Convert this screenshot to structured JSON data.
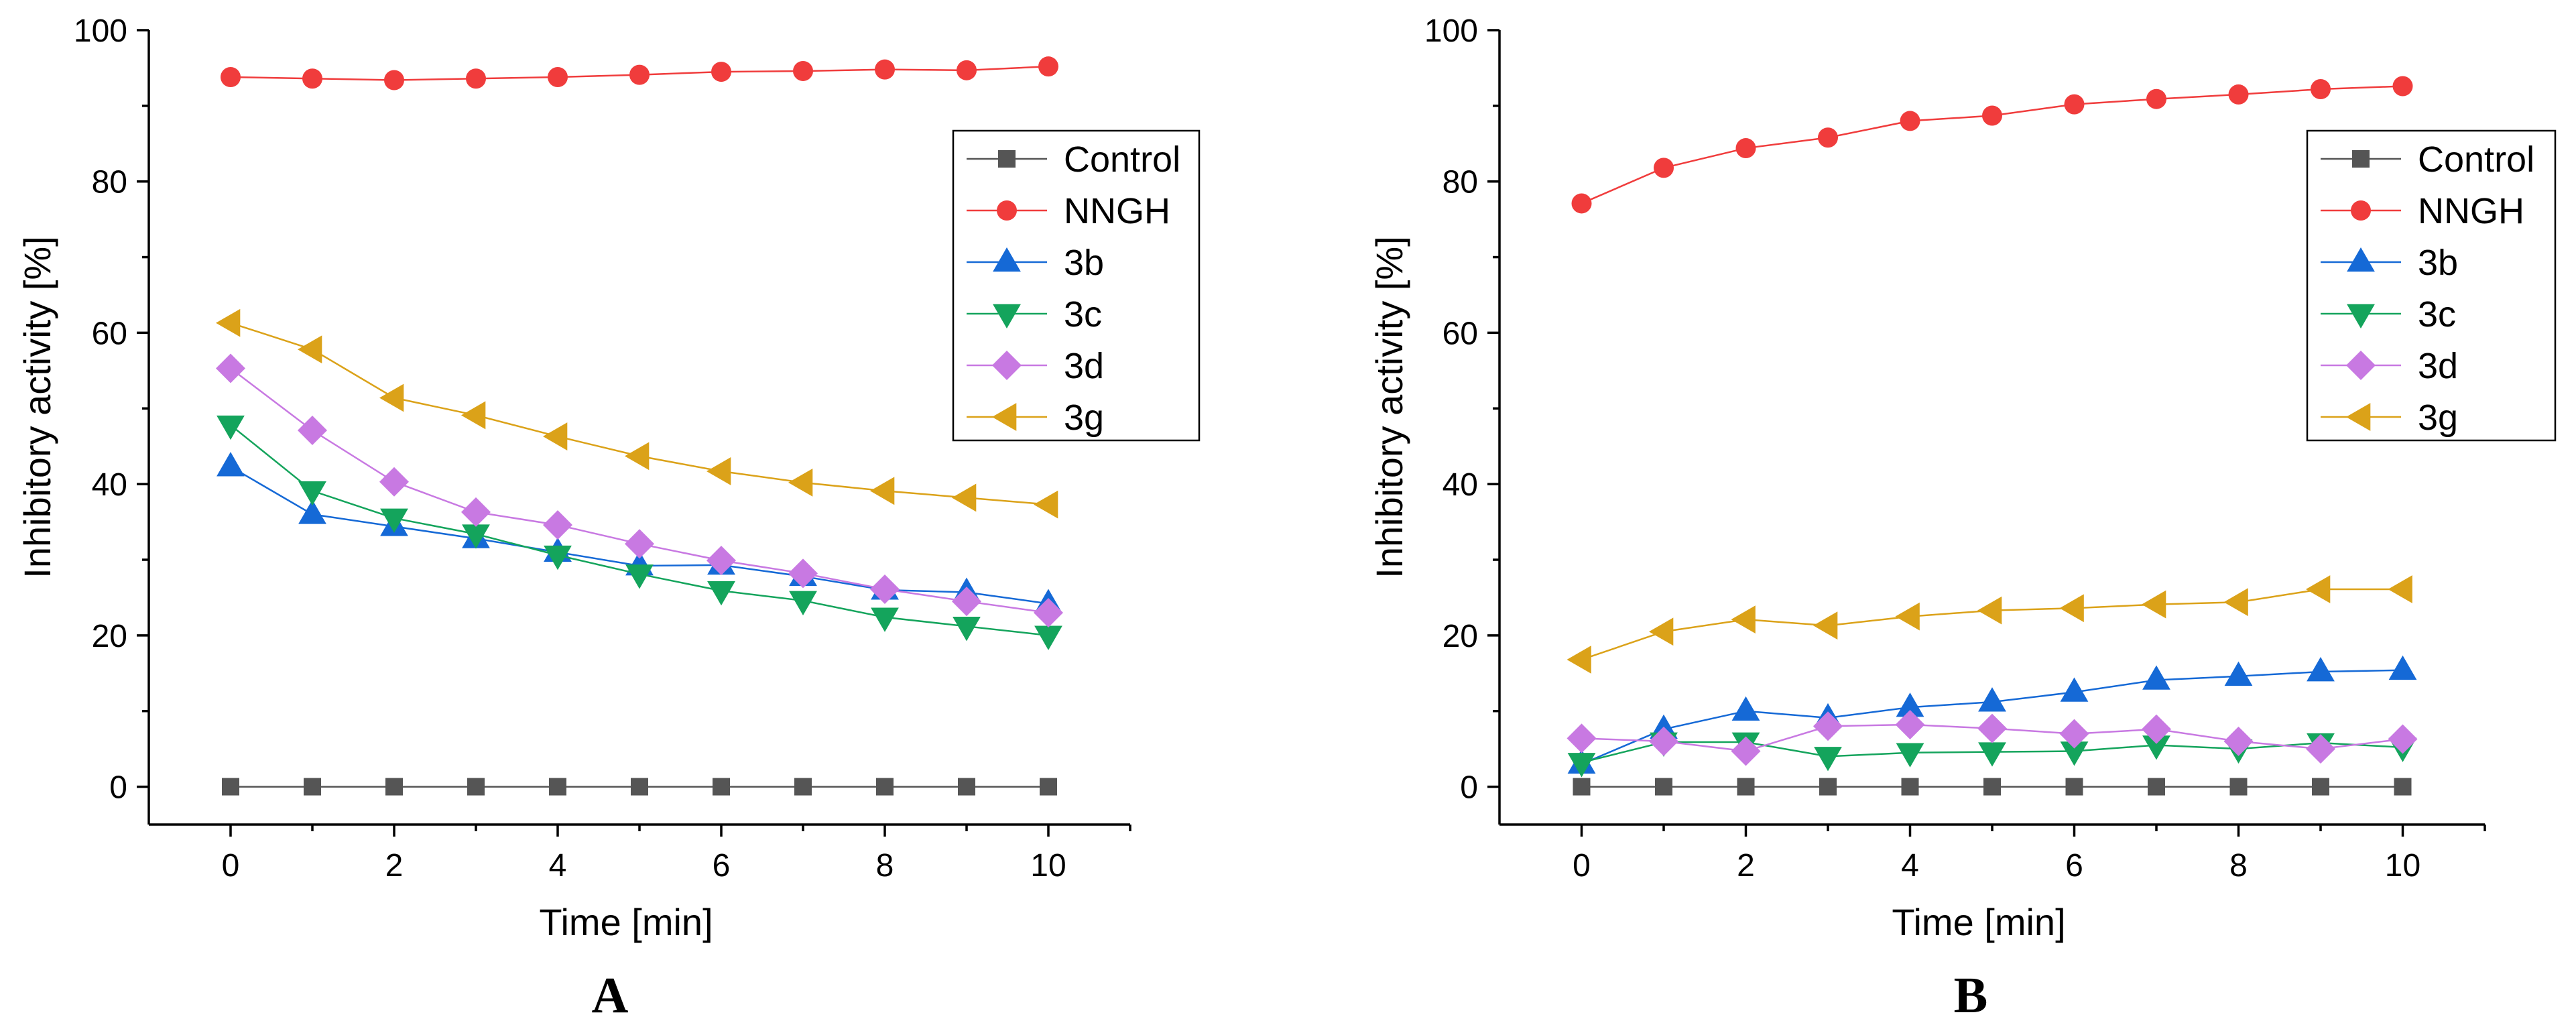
{
  "chart_data": [
    {
      "type": "line",
      "panel": "A",
      "xlabel": "Time [min]",
      "ylabel": "Inhibitory activity [%]",
      "xlim": [
        -1,
        11
      ],
      "ylim": [
        -5,
        100
      ],
      "xticks": [
        0,
        2,
        4,
        6,
        8,
        10
      ],
      "yticks": [
        0,
        20,
        40,
        60,
        80,
        100
      ],
      "grid": false,
      "legend_position": "top-right",
      "x": [
        0,
        1,
        2,
        3,
        4,
        5,
        6,
        7,
        8,
        9,
        10
      ],
      "series": [
        {
          "name": "Control",
          "color": "#555555",
          "marker": "square",
          "values": [
            0,
            0,
            0,
            0,
            0,
            0,
            0,
            0,
            0,
            0,
            0
          ]
        },
        {
          "name": "NNGH",
          "color": "#f03c3c",
          "marker": "circle",
          "values": [
            93.8,
            93.6,
            93.4,
            93.6,
            93.8,
            94.1,
            94.5,
            94.6,
            94.8,
            94.7,
            95.2
          ]
        },
        {
          "name": "3b",
          "color": "#1569d6",
          "marker": "triangle-up",
          "values": [
            42.3,
            36.0,
            34.4,
            32.8,
            31.0,
            29.2,
            29.3,
            27.8,
            26.0,
            25.7,
            24.2
          ]
        },
        {
          "name": "3c",
          "color": "#14a45c",
          "marker": "triangle-down",
          "values": [
            47.8,
            39.1,
            35.5,
            33.4,
            30.6,
            28.1,
            25.9,
            24.6,
            22.4,
            21.2,
            20.0
          ]
        },
        {
          "name": "3d",
          "color": "#c879e2",
          "marker": "diamond",
          "values": [
            55.3,
            47.1,
            40.3,
            36.3,
            34.6,
            32.1,
            29.9,
            28.2,
            26.1,
            24.5,
            23.0
          ]
        },
        {
          "name": "3g",
          "color": "#dba219",
          "marker": "triangle-left",
          "values": [
            61.3,
            57.8,
            51.4,
            49.1,
            46.3,
            43.7,
            41.7,
            40.2,
            39.1,
            38.2,
            37.3
          ]
        }
      ]
    },
    {
      "type": "line",
      "panel": "B",
      "xlabel": "Time [min]",
      "ylabel": "Inhibitory activity [%]",
      "xlim": [
        -1,
        11
      ],
      "ylim": [
        -5,
        100
      ],
      "xticks": [
        0,
        2,
        4,
        6,
        8,
        10
      ],
      "yticks": [
        0,
        20,
        40,
        60,
        80,
        100
      ],
      "grid": false,
      "legend_position": "top-right",
      "x": [
        0,
        1,
        2,
        3,
        4,
        5,
        6,
        7,
        8,
        9,
        10
      ],
      "series": [
        {
          "name": "Control",
          "color": "#555555",
          "marker": "square",
          "values": [
            0,
            0,
            0,
            0,
            0,
            0,
            0,
            0,
            0,
            0,
            0
          ]
        },
        {
          "name": "NNGH",
          "color": "#f03c3c",
          "marker": "circle",
          "values": [
            77.1,
            81.8,
            84.4,
            85.8,
            88.0,
            88.7,
            90.2,
            90.9,
            91.5,
            92.2,
            92.6
          ]
        },
        {
          "name": "3b",
          "color": "#1569d6",
          "marker": "triangle-up",
          "values": [
            3.0,
            7.6,
            10.0,
            9.1,
            10.5,
            11.2,
            12.5,
            14.1,
            14.6,
            15.2,
            15.4
          ]
        },
        {
          "name": "3c",
          "color": "#14a45c",
          "marker": "triangle-down",
          "values": [
            3.2,
            5.9,
            5.9,
            4.0,
            4.5,
            4.6,
            4.7,
            5.5,
            5.0,
            5.8,
            5.2
          ]
        },
        {
          "name": "3d",
          "color": "#c879e2",
          "marker": "diamond",
          "values": [
            6.4,
            6.0,
            4.7,
            8.0,
            8.2,
            7.7,
            7.0,
            7.6,
            6.0,
            5.0,
            6.3
          ]
        },
        {
          "name": "3g",
          "color": "#dba219",
          "marker": "triangle-left",
          "values": [
            16.8,
            20.5,
            22.1,
            21.3,
            22.5,
            23.3,
            23.6,
            24.1,
            24.4,
            26.1,
            26.1
          ]
        }
      ]
    }
  ]
}
